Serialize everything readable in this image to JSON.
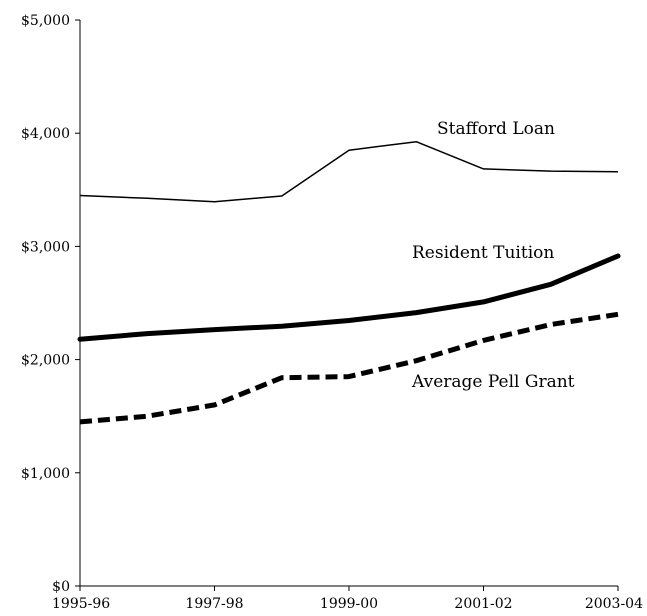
{
  "chart_data": {
    "type": "line",
    "title": "",
    "xlabel": "",
    "ylabel": "",
    "x": [
      "1995-96",
      "1996-97",
      "1997-98",
      "1998-99",
      "1999-00",
      "2000-01",
      "2001-02",
      "2002-03",
      "2003-04"
    ],
    "x_tick_labels": [
      "1995-96",
      "1997-98",
      "1999-00",
      "2001-02",
      "2003-04"
    ],
    "ylim": [
      0,
      5000
    ],
    "y_ticks": [
      0,
      1000,
      2000,
      3000,
      4000,
      5000
    ],
    "y_tick_labels": [
      "$0",
      "$1,000",
      "$2,000",
      "$3,000",
      "$4,000",
      "$5,000"
    ],
    "grid": false,
    "legend": "none",
    "series": [
      {
        "key": "stafford",
        "name": "Stafford Loan",
        "values": [
          3450,
          3425,
          3395,
          3445,
          3850,
          3925,
          3685,
          3665,
          3660
        ],
        "style": "thin-solid",
        "color": "#000000"
      },
      {
        "key": "tuition",
        "name": "Resident Tuition",
        "values": [
          2180,
          2230,
          2265,
          2295,
          2345,
          2415,
          2510,
          2665,
          2915
        ],
        "style": "thick-solid",
        "color": "#000000"
      },
      {
        "key": "pell",
        "name": "Average Pell Grant",
        "values": [
          1450,
          1500,
          1600,
          1840,
          1850,
          1990,
          2170,
          2310,
          2400
        ],
        "style": "thick-dashed",
        "color": "#000000"
      }
    ]
  }
}
